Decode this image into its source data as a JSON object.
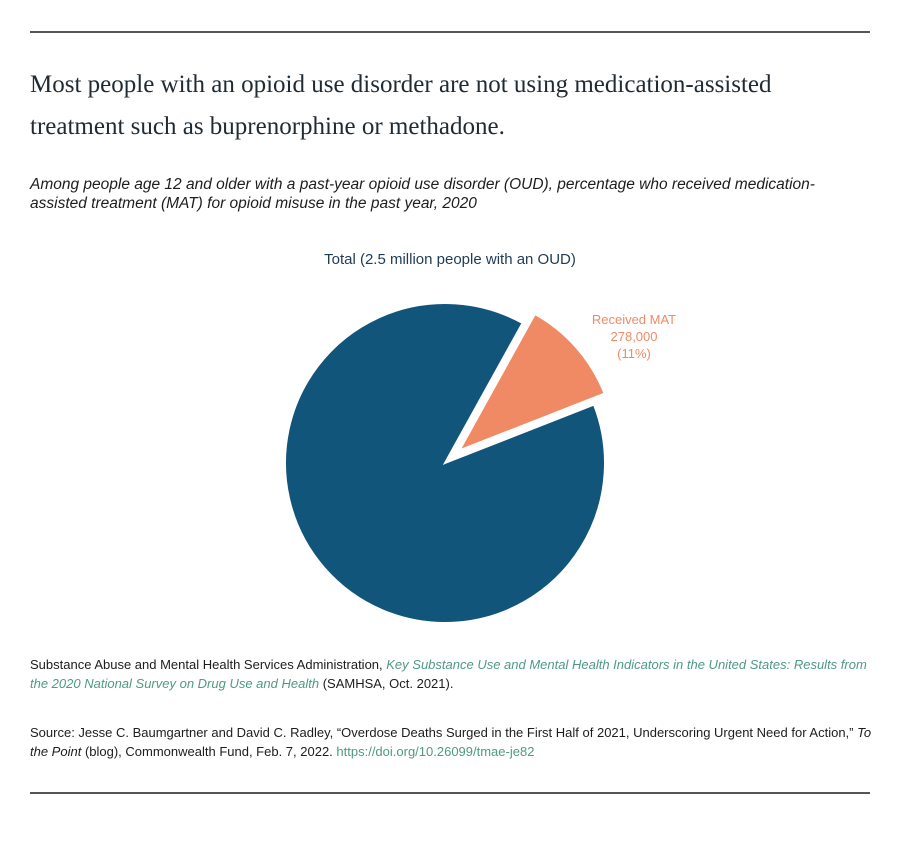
{
  "header": {
    "title": "Most people with an opioid use disorder are not using medication-assisted treatment such as buprenorphine or methadone.",
    "subtitle": "Among people age 12 and older with a past-year opioid use disorder (OUD), percentage who received medication-assisted treatment (MAT) for opioid misuse in the past year, 2020"
  },
  "chart_data": {
    "type": "pie",
    "title": "Total (2.5 million people with an OUD)",
    "categories": [
      "Received MAT",
      null
    ],
    "values": [
      11,
      89
    ],
    "value_labels": [
      "(11%)",
      null
    ],
    "counts": [
      278000,
      null
    ],
    "count_labels": [
      "278,000",
      null
    ],
    "colors": [
      "#f08a65",
      "#12557a"
    ]
  },
  "notes": {
    "data_source": {
      "text": "Substance Abuse and Mental Health Services Administration, ",
      "link": "Key Substance Use and Mental Health Indicators in the United States: Results from the 2020 National Survey on Drug Use and Health",
      "tail": " (SAMHSA, Oct. 2021)."
    },
    "source": {
      "text": "Source: Jesse C. Baumgartner and David C. Radley, “Overdose Deaths Surged in the First Half of 2021, Underscoring Urgent Need for Action,” ",
      "italic": "To the Point",
      "tail": " (blog), Commonwealth Fund, Feb. 7, 2022. ",
      "link": "https://doi.org/10.26099/tmae-je82"
    }
  }
}
